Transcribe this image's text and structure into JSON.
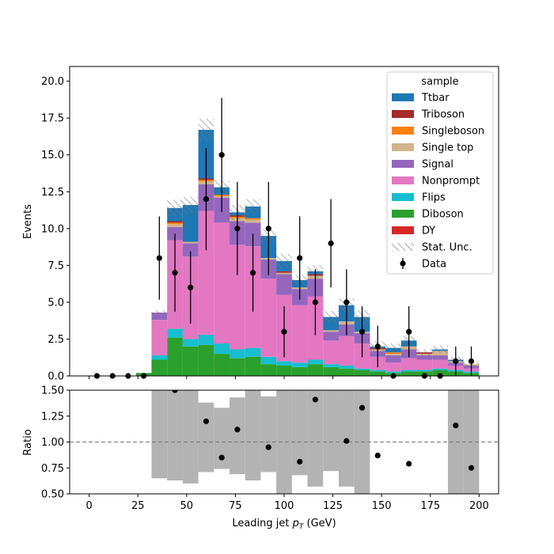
{
  "chart_data": {
    "type": "bar",
    "stacked": true,
    "bin_edges": [
      0,
      8,
      16,
      24,
      32,
      40,
      48,
      56,
      64,
      72,
      80,
      88,
      96,
      104,
      112,
      120,
      128,
      136,
      144,
      152,
      160,
      168,
      176,
      184,
      192,
      200
    ],
    "main": {
      "ylabel": "Events",
      "ylim": [
        0,
        21
      ],
      "xlim": [
        -10,
        210
      ],
      "yticks": [
        0.0,
        2.5,
        5.0,
        7.5,
        10.0,
        12.5,
        15.0,
        17.5,
        20.0
      ],
      "ytick_labels": [
        "0.0",
        "2.5",
        "5.0",
        "7.5",
        "10.0",
        "12.5",
        "15.0",
        "17.5",
        "20.0"
      ],
      "legend_title": "sample",
      "legend_placement": "upper-right",
      "series": [
        {
          "name": "DY",
          "color": "#d62728",
          "values": [
            0,
            0,
            0,
            0,
            0,
            0,
            0,
            0,
            0,
            0,
            0,
            0,
            0,
            0,
            0,
            0,
            0,
            0,
            0,
            0,
            0,
            0,
            0,
            0,
            0
          ]
        },
        {
          "name": "Diboson",
          "color": "#2ca02c",
          "values": [
            0,
            0,
            0,
            0.2,
            1.1,
            2.6,
            2.0,
            2.1,
            1.5,
            1.2,
            1.3,
            0.8,
            0.7,
            0.6,
            0.8,
            0.6,
            0.5,
            0.4,
            0.3,
            0.2,
            0.3,
            0.3,
            0.4,
            0.3,
            0.2
          ]
        },
        {
          "name": "Flips",
          "color": "#17becf",
          "values": [
            0,
            0,
            0,
            0,
            0.3,
            0.6,
            0.5,
            0.7,
            0.7,
            0.6,
            0.6,
            0.5,
            0.3,
            0.3,
            0.3,
            0.2,
            0.2,
            0.1,
            0.1,
            0.1,
            0.1,
            0.1,
            0.1,
            0.1,
            0.1
          ]
        },
        {
          "name": "Nonprompt",
          "color": "#e377c2",
          "values": [
            0,
            0,
            0,
            0,
            2.4,
            6.0,
            5.6,
            8.4,
            8.2,
            7.1,
            6.9,
            5.3,
            4.5,
            3.9,
            4.3,
            1.6,
            2.0,
            1.7,
            0.9,
            0.6,
            0.8,
            0.7,
            0.6,
            0.3,
            0.2
          ]
        },
        {
          "name": "Signal",
          "color": "#9467bd",
          "values": [
            0,
            0,
            0,
            0,
            0.5,
            0.9,
            0.9,
            1.8,
            1.7,
            1.6,
            1.6,
            1.3,
            1.4,
            1.1,
            1.2,
            0.6,
            0.8,
            0.7,
            0.4,
            0.5,
            0.6,
            0.3,
            0.3,
            0.2,
            0.2
          ]
        },
        {
          "name": "Single top",
          "color": "#d2b48c",
          "values": [
            0,
            0,
            0,
            0,
            0,
            0.2,
            0.1,
            0.2,
            0.1,
            0.2,
            0.2,
            0.1,
            0.1,
            0.1,
            0.2,
            0.1,
            0.2,
            0.1,
            0.1,
            0.1,
            0.2,
            0.1,
            0.3,
            0.1,
            0.1
          ]
        },
        {
          "name": "Singleboson",
          "color": "#ff7f0e",
          "values": [
            0,
            0,
            0,
            0,
            0,
            0.1,
            0,
            0.1,
            0.1,
            0.1,
            0.1,
            0,
            0,
            0,
            0,
            0,
            0,
            0,
            0,
            0.1,
            0,
            0,
            0,
            0,
            0
          ]
        },
        {
          "name": "Triboson",
          "color": "#a52a2a",
          "values": [
            0,
            0,
            0,
            0,
            0,
            0.1,
            0,
            0.1,
            0,
            0.1,
            0,
            0,
            0.1,
            0,
            0.1,
            0,
            0,
            0,
            0.1,
            0,
            0,
            0.1,
            0,
            0,
            0
          ]
        },
        {
          "name": "Ttbar",
          "color": "#1f77b4",
          "values": [
            0,
            0,
            0,
            0,
            0,
            0.9,
            2.5,
            3.3,
            0.5,
            0.2,
            0.8,
            1.5,
            0.7,
            0.5,
            0.2,
            0.9,
            1.1,
            1.0,
            0.1,
            0.3,
            0.4,
            0,
            0.1,
            0.1,
            0
          ]
        }
      ],
      "stat_unc": {
        "name": "Stat. Unc.",
        "half_width": [
          0,
          0,
          0,
          0,
          0.15,
          0.55,
          0.55,
          0.75,
          0.45,
          0.5,
          0.5,
          0.45,
          0.5,
          0.35,
          0.4,
          0.4,
          0.45,
          0.45,
          0.35,
          0.3,
          0.3,
          0.2,
          0.25,
          0.2,
          0.15
        ]
      },
      "data": {
        "name": "Data",
        "x": [
          4,
          12,
          20,
          28,
          36,
          44,
          52,
          60,
          68,
          76,
          84,
          92,
          100,
          108,
          116,
          124,
          132,
          140,
          148,
          156,
          164,
          172,
          180,
          188,
          196
        ],
        "y": [
          0,
          0,
          0,
          0,
          8,
          7,
          6,
          12,
          15,
          10,
          7,
          10,
          3,
          8,
          5,
          9,
          5,
          3,
          2,
          0,
          3,
          0,
          0,
          1,
          1
        ]
      }
    },
    "ratio": {
      "ylabel": "Ratio",
      "ylim": [
        0.5,
        1.5
      ],
      "yticks": [
        0.5,
        0.75,
        1.0,
        1.25,
        1.5
      ],
      "ytick_labels": [
        "0.50",
        "0.75",
        "1.00",
        "1.25",
        "1.50"
      ],
      "reference_line": 1.0,
      "band_low": [
        null,
        null,
        null,
        null,
        0.65,
        0.63,
        0.6,
        0.71,
        0.74,
        0.69,
        0.63,
        0.71,
        0.5,
        0.68,
        0.57,
        0.72,
        0.57,
        0.5,
        null,
        null,
        null,
        null,
        null,
        0.5,
        0.5
      ],
      "band_high": [
        null,
        null,
        null,
        null,
        1.5,
        1.5,
        1.5,
        1.38,
        1.33,
        1.43,
        1.5,
        1.44,
        1.5,
        1.5,
        1.5,
        1.5,
        1.5,
        1.5,
        null,
        null,
        null,
        null,
        null,
        1.5,
        1.5
      ],
      "points_x": [
        44,
        60,
        68,
        76,
        92,
        108,
        116,
        132,
        140,
        148,
        164,
        188,
        196
      ],
      "points_y": [
        1.5,
        1.2,
        0.85,
        1.12,
        0.95,
        0.81,
        1.41,
        1.01,
        1.33,
        0.87,
        0.79,
        1.16,
        0.75
      ]
    },
    "xlabel": "Leading jet  p_T (GeV)",
    "xticks": [
      0,
      25,
      50,
      75,
      100,
      125,
      150,
      175,
      200
    ],
    "xtick_labels": [
      "0",
      "25",
      "50",
      "75",
      "100",
      "125",
      "150",
      "175",
      "200"
    ],
    "legend_order": [
      "Ttbar",
      "Triboson",
      "Singleboson",
      "Single top",
      "Signal",
      "Nonprompt",
      "Flips",
      "Diboson",
      "DY",
      "Stat. Unc.",
      "Data"
    ]
  }
}
